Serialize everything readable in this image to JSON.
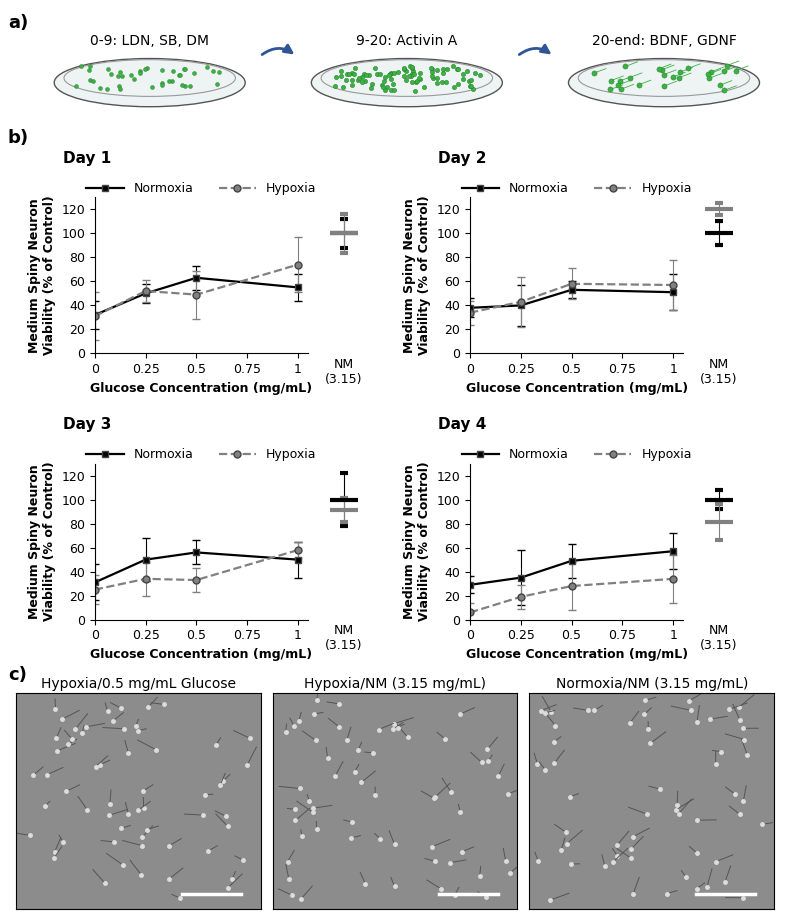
{
  "chart_data": [
    {
      "type": "line",
      "title": "Day 1",
      "x_label": "Glucose Concentration (mg/mL)",
      "y_label": "Medium Spiny Neuron\nViability (% of Control)",
      "x": [
        0,
        0.25,
        0.5,
        1
      ],
      "xlim": [
        0,
        1.05
      ],
      "xticks": [
        0,
        0.25,
        0.5,
        0.75,
        1
      ],
      "ylim": [
        0,
        130
      ],
      "yticks": [
        0,
        20,
        40,
        60,
        80,
        100,
        120
      ],
      "legend": "upper center",
      "control_label": "NM\n(3.15)",
      "series": [
        {
          "name": "Normoxia",
          "color": "#000000",
          "marker": "square",
          "line_style": "solid",
          "values": [
            32,
            50,
            63,
            55
          ],
          "errors": [
            12,
            8,
            10,
            11
          ],
          "control_value": 100,
          "control_error": 12
        },
        {
          "name": "Hypoxia",
          "color": "#808080",
          "marker": "circle",
          "line_style": "dashed",
          "values": [
            31,
            52,
            49,
            74
          ],
          "errors": [
            20,
            9,
            20,
            23
          ],
          "control_value": 100,
          "control_error": 16
        }
      ]
    },
    {
      "type": "line",
      "title": "Day 2",
      "x_label": "Glucose Concentration (mg/mL)",
      "y_label": "Medium Spiny Neuron\nViability (% of Control)",
      "x": [
        0,
        0.25,
        0.5,
        1
      ],
      "xlim": [
        0,
        1.05
      ],
      "xticks": [
        0,
        0.25,
        0.5,
        0.75,
        1
      ],
      "ylim": [
        0,
        130
      ],
      "yticks": [
        0,
        20,
        40,
        60,
        80,
        100,
        120
      ],
      "legend": "upper center",
      "control_label": "NM\n(3.15)",
      "series": [
        {
          "name": "Normoxia",
          "color": "#000000",
          "marker": "square",
          "line_style": "solid",
          "values": [
            38,
            40,
            53,
            51
          ],
          "errors": [
            8,
            17,
            7,
            15
          ],
          "control_value": 100,
          "control_error": 10
        },
        {
          "name": "Hypoxia",
          "color": "#808080",
          "marker": "circle",
          "line_style": "dashed",
          "values": [
            34,
            43,
            58,
            57
          ],
          "errors": [
            10,
            21,
            13,
            21
          ],
          "control_value": 120,
          "control_error": 5
        }
      ]
    },
    {
      "type": "line",
      "title": "Day 3",
      "x_label": "Glucose Concentration (mg/mL)",
      "y_label": "Medium Spiny Neuron\nViability (% of Control)",
      "x": [
        0,
        0.25,
        0.5,
        1
      ],
      "xlim": [
        0,
        1.05
      ],
      "xticks": [
        0,
        0.25,
        0.5,
        0.75,
        1
      ],
      "ylim": [
        0,
        130
      ],
      "yticks": [
        0,
        20,
        40,
        60,
        80,
        100,
        120
      ],
      "legend": "upper center",
      "control_label": "NM\n(3.15)",
      "series": [
        {
          "name": "Normoxia",
          "color": "#000000",
          "marker": "square",
          "line_style": "solid",
          "values": [
            31,
            50,
            56,
            50
          ],
          "errors": [
            15,
            18,
            10,
            15
          ],
          "control_value": 100,
          "control_error": 22
        },
        {
          "name": "Hypoxia",
          "color": "#808080",
          "marker": "circle",
          "line_style": "dashed",
          "values": [
            25,
            34,
            33,
            58
          ],
          "errors": [
            12,
            14,
            10,
            7
          ],
          "control_value": 91,
          "control_error": 10
        }
      ]
    },
    {
      "type": "line",
      "title": "Day 4",
      "x_label": "Glucose Concentration (mg/mL)",
      "y_label": "Medium Spiny Neuron\nViability (% of Control)",
      "x": [
        0,
        0.25,
        0.5,
        1
      ],
      "xlim": [
        0,
        1.05
      ],
      "xticks": [
        0,
        0.25,
        0.5,
        0.75,
        1
      ],
      "ylim": [
        0,
        130
      ],
      "yticks": [
        0,
        20,
        40,
        60,
        80,
        100,
        120
      ],
      "legend": "upper center",
      "control_label": "NM\n(3.15)",
      "series": [
        {
          "name": "Normoxia",
          "color": "#000000",
          "marker": "square",
          "line_style": "solid",
          "values": [
            29,
            35,
            49,
            57
          ],
          "errors": [
            7,
            23,
            14,
            15
          ],
          "control_value": 100,
          "control_error": 8
        },
        {
          "name": "Hypoxia",
          "color": "#808080",
          "marker": "circle",
          "line_style": "dashed",
          "values": [
            6,
            19,
            28,
            34
          ],
          "errors": [
            8,
            10,
            20,
            20
          ],
          "control_value": 81,
          "control_error": 15
        }
      ]
    }
  ],
  "diagram": {
    "label": "a)",
    "steps": [
      "0-9: LDN, SB, DM",
      "9-20: Activin A",
      "20-end: BDNF, GDNF"
    ]
  },
  "charts_label": "b)",
  "images": {
    "label": "c)",
    "captions": [
      "Hypoxia/0.5 mg/mL Glucose",
      "Hypoxia/NM (3.15 mg/mL)",
      "Normoxia/NM (3.15 mg/mL)"
    ]
  }
}
